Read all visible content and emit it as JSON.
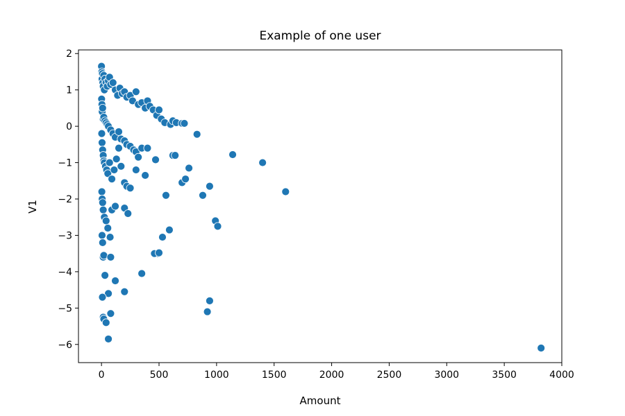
{
  "chart_data": {
    "type": "scatter",
    "title": "Example of one user",
    "xlabel": "Amount",
    "ylabel": "V1",
    "xlim": [
      -200,
      4000
    ],
    "ylim": [
      -6.5,
      2.1
    ],
    "xticks": [
      0,
      500,
      1000,
      1500,
      2000,
      2500,
      3000,
      3500,
      4000
    ],
    "yticks": [
      -6,
      -5,
      -4,
      -3,
      -2,
      -1,
      0,
      1,
      2
    ],
    "ytick_labels": [
      "−6",
      "−5",
      "−4",
      "−3",
      "−2",
      "−1",
      "0",
      "1",
      "2"
    ],
    "grid": false,
    "color": "#1f77b4",
    "x": [
      0,
      3,
      5,
      8,
      12,
      15,
      20,
      25,
      30,
      40,
      50,
      60,
      70,
      80,
      100,
      120,
      140,
      160,
      180,
      200,
      220,
      250,
      270,
      300,
      320,
      350,
      380,
      400,
      420,
      450,
      480,
      500,
      520,
      550,
      600,
      620,
      650,
      700,
      720,
      830,
      1,
      4,
      6,
      10,
      15,
      20,
      30,
      40,
      50,
      60,
      80,
      100,
      120,
      150,
      170,
      200,
      220,
      250,
      280,
      300,
      350,
      400,
      2,
      5,
      10,
      15,
      20,
      25,
      35,
      45,
      55,
      70,
      90,
      110,
      130,
      150,
      170,
      200,
      220,
      250,
      300,
      320,
      380,
      470,
      620,
      640,
      700,
      730,
      760,
      880,
      940,
      1140,
      1400,
      1600,
      3,
      6,
      10,
      15,
      25,
      40,
      55,
      75,
      90,
      120,
      200,
      230,
      490,
      530,
      560,
      590,
      990,
      1010,
      5,
      10,
      15,
      20,
      30,
      60,
      80,
      120,
      200,
      350,
      460,
      500,
      920,
      940,
      8,
      15,
      20,
      40,
      60,
      80,
      3820
    ],
    "y": [
      1.65,
      1.5,
      1.3,
      1.45,
      1.2,
      1.1,
      1.4,
      1.0,
      1.3,
      1.2,
      1.1,
      1.25,
      1.35,
      1.15,
      1.2,
      1.0,
      0.85,
      1.05,
      0.9,
      0.95,
      0.8,
      0.85,
      0.7,
      0.95,
      0.6,
      0.65,
      0.5,
      0.7,
      0.55,
      0.45,
      0.3,
      0.45,
      0.2,
      0.1,
      0.05,
      0.15,
      0.1,
      0.08,
      0.08,
      -0.22,
      0.75,
      0.6,
      0.4,
      0.5,
      0.2,
      0.25,
      0.15,
      0.1,
      0.05,
      0.0,
      -0.1,
      -0.2,
      -0.3,
      -0.15,
      -0.35,
      -0.4,
      -0.5,
      -0.55,
      -0.65,
      -0.7,
      -0.6,
      -0.6,
      -0.2,
      -0.45,
      -0.65,
      -0.8,
      -0.95,
      -1.0,
      -1.1,
      -1.2,
      -1.3,
      -1.0,
      -1.45,
      -1.2,
      -0.9,
      -0.6,
      -1.1,
      -1.55,
      -1.65,
      -1.7,
      -1.2,
      -0.85,
      -1.35,
      -0.92,
      -0.8,
      -0.8,
      -1.55,
      -1.45,
      -1.15,
      -1.9,
      -1.65,
      -0.78,
      -1.0,
      -1.8,
      -1.8,
      -2.0,
      -2.1,
      -2.3,
      -2.5,
      -2.6,
      -2.8,
      -3.05,
      -2.3,
      -2.2,
      -2.25,
      -2.4,
      -3.5,
      -3.05,
      -1.9,
      -2.85,
      -2.6,
      -2.75,
      -3.0,
      -3.2,
      -3.6,
      -3.55,
      -4.1,
      -4.6,
      -3.6,
      -4.25,
      -4.55,
      -4.05,
      -3.5,
      -3.48,
      -5.1,
      -4.8,
      -4.7,
      -5.25,
      -5.3,
      -5.4,
      -5.85,
      -5.15,
      -6.1
    ]
  }
}
